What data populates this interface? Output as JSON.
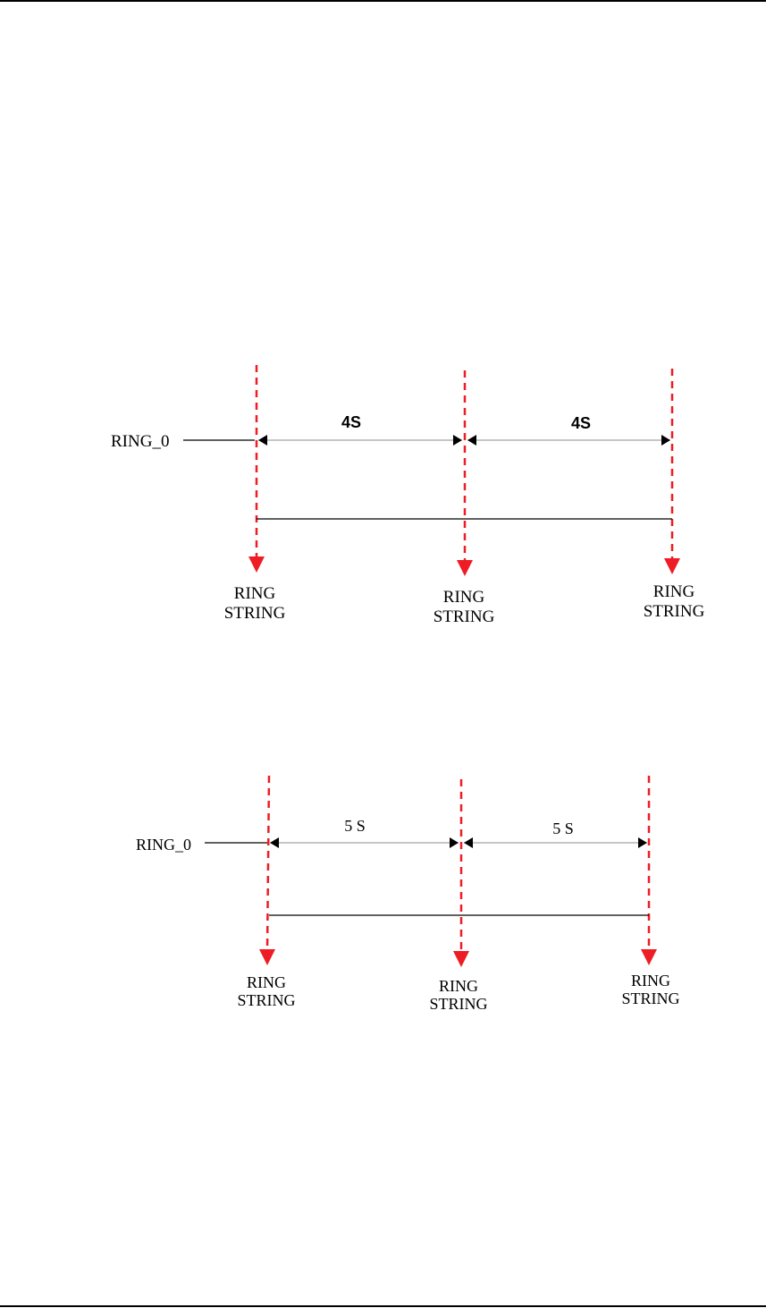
{
  "colors": {
    "marker": "#ee1c24",
    "line": "#000000",
    "dimension_line": "#8c8c8c"
  },
  "diagrams": [
    {
      "ring_label": "RING_0",
      "interval_1": "4S",
      "interval_2": "4S",
      "marker_labels": [
        [
          "RING",
          "STRING"
        ],
        [
          "RING",
          "STRING"
        ],
        [
          "RING",
          "STRING"
        ]
      ]
    },
    {
      "ring_label": "RING_0",
      "interval_1": "5 S",
      "interval_2": "5 S",
      "marker_labels": [
        [
          "RING",
          "STRING"
        ],
        [
          "RING",
          "STRING"
        ],
        [
          "RING",
          "STRING"
        ]
      ]
    }
  ]
}
